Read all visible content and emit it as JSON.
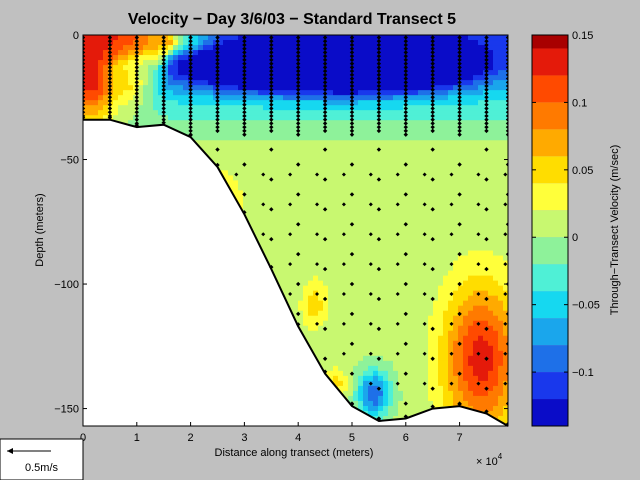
{
  "chart_data": {
    "type": "heatmap",
    "title": "Velocity − Day 3/6/03 − Standard Transect 5",
    "xlabel": "Distance along transect (meters)",
    "ylabel": "Depth (meters)",
    "x_multiplier_label": "× 10",
    "x_multiplier_exponent": "4",
    "xlim": [
      0,
      79000
    ],
    "ylim": [
      -157,
      0
    ],
    "x_ticks": [
      {
        "v": 0,
        "label": "0"
      },
      {
        "v": 10000,
        "label": "1"
      },
      {
        "v": 20000,
        "label": "2"
      },
      {
        "v": 30000,
        "label": "3"
      },
      {
        "v": 40000,
        "label": "4"
      },
      {
        "v": 50000,
        "label": "5"
      },
      {
        "v": 60000,
        "label": "6"
      },
      {
        "v": 70000,
        "label": "7"
      }
    ],
    "y_ticks": [
      {
        "v": 0,
        "label": "0"
      },
      {
        "v": -50,
        "label": "−50"
      },
      {
        "v": -100,
        "label": "−100"
      },
      {
        "v": -150,
        "label": "−150"
      }
    ],
    "colorbar": {
      "label": "Through−Transect Velocity (m/sec)",
      "range": [
        -0.14,
        0.15
      ],
      "ticks": [
        {
          "v": 0.15,
          "label": "0.15"
        },
        {
          "v": 0.1,
          "label": "0.1"
        },
        {
          "v": 0.05,
          "label": "0.05"
        },
        {
          "v": 0,
          "label": "0"
        },
        {
          "v": -0.05,
          "label": "−0.05"
        },
        {
          "v": -0.1,
          "label": "−0.1"
        }
      ],
      "levels": [
        {
          "low": 0.14,
          "high": 0.15,
          "color": "#a80000"
        },
        {
          "low": 0.12,
          "high": 0.14,
          "color": "#e41a0a"
        },
        {
          "low": 0.1,
          "high": 0.12,
          "color": "#ff4a00"
        },
        {
          "low": 0.08,
          "high": 0.1,
          "color": "#ff7a00"
        },
        {
          "low": 0.06,
          "high": 0.08,
          "color": "#ffaa00"
        },
        {
          "low": 0.04,
          "high": 0.06,
          "color": "#ffdd00"
        },
        {
          "low": 0.02,
          "high": 0.04,
          "color": "#ffff3a"
        },
        {
          "low": 0.0,
          "high": 0.02,
          "color": "#c8f870"
        },
        {
          "low": -0.02,
          "high": 0.0,
          "color": "#8ef29a"
        },
        {
          "low": -0.04,
          "high": -0.02,
          "color": "#4ff0d6"
        },
        {
          "low": -0.06,
          "high": -0.04,
          "color": "#16d8f0"
        },
        {
          "low": -0.08,
          "high": -0.06,
          "color": "#1aa6ec"
        },
        {
          "low": -0.1,
          "high": -0.08,
          "color": "#1e70e8"
        },
        {
          "low": -0.12,
          "high": -0.1,
          "color": "#1938ec"
        },
        {
          "low": -0.14,
          "high": -0.12,
          "color": "#0a0cc8"
        }
      ]
    },
    "bathymetry": [
      [
        0,
        -34
      ],
      [
        5000,
        -34
      ],
      [
        10000,
        -37
      ],
      [
        15000,
        -36
      ],
      [
        20000,
        -41
      ],
      [
        25000,
        -53
      ],
      [
        30000,
        -72
      ],
      [
        35000,
        -94
      ],
      [
        40000,
        -117
      ],
      [
        45000,
        -136
      ],
      [
        50000,
        -149
      ],
      [
        55000,
        -155
      ],
      [
        60000,
        -154
      ],
      [
        65000,
        -150
      ],
      [
        70000,
        -149
      ],
      [
        75000,
        -152
      ],
      [
        79000,
        -157
      ]
    ],
    "velocity_features": [
      {
        "x": 1500,
        "depth": -17,
        "value": 0.14,
        "rx": 5000,
        "ry": 18
      },
      {
        "x": 1500,
        "depth": -3,
        "value": 0.14,
        "rx": 12000,
        "ry": 5
      },
      {
        "x": 4000,
        "depth": -3,
        "value": 0.12,
        "rx": 14000,
        "ry": 5
      },
      {
        "x": 9500,
        "depth": -15,
        "value": 0.05,
        "rx": 3500,
        "ry": 14
      },
      {
        "x": 13500,
        "depth": -5,
        "value": 0.05,
        "rx": 2200,
        "ry": 10
      },
      {
        "x": 38000,
        "depth": -12,
        "value": -0.25,
        "rx": 20000,
        "ry": 10
      },
      {
        "x": 58000,
        "depth": -11,
        "value": -0.25,
        "rx": 16000,
        "ry": 10
      },
      {
        "x": 74000,
        "depth": -130,
        "value": 0.13,
        "rx": 7000,
        "ry": 30
      },
      {
        "x": 54000,
        "depth": -144,
        "value": -0.1,
        "rx": 3000,
        "ry": 9
      },
      {
        "x": 43000,
        "depth": -108,
        "value": 0.05,
        "rx": 2500,
        "ry": 10
      },
      {
        "x": 26000,
        "depth": -70,
        "value": 0.05,
        "rx": 3500,
        "ry": 15
      },
      {
        "x": 47000,
        "depth": -140,
        "value": 0.05,
        "rx": 2500,
        "ry": 6
      }
    ],
    "velocity_background": {
      "surface": -0.09,
      "bottom": 0.005,
      "mid_depth": -45
    },
    "profiles": {
      "x_stations": [
        0,
        5000,
        10000,
        15000,
        20000,
        25000,
        30000,
        35000,
        40000,
        45000,
        50000,
        55000,
        60000,
        65000,
        70000,
        75000,
        79000
      ],
      "surface_sample_spacing": 1.5,
      "deep_sample_spacing": 12
    },
    "scale_vector": {
      "label": "0.5m/s",
      "value": 0.5
    }
  }
}
